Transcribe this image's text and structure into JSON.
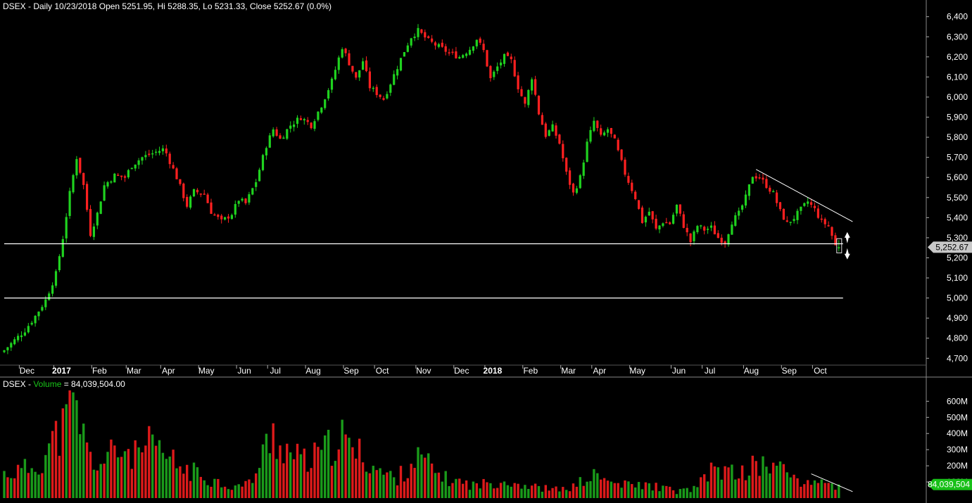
{
  "price_header": {
    "text": "DSEX - Daily 10/23/2018 Open 5251.95, Hi 5288.35, Lo 5231.33, Close 5252.67 (0.0%)"
  },
  "volume_header": {
    "prefix": "DSEX - ",
    "label": "Volume",
    "suffix": " = 84,039,504.00"
  },
  "last_price_tag": "5,252.67",
  "last_volume_tag": "84,039,504",
  "colors": {
    "background": "#000000",
    "up": "#1fd21f",
    "down": "#ff2020",
    "vol_up": "#1a9a1a",
    "vol_down": "#dd1a1a",
    "line": "#ffffff",
    "tag_price_bg": "#c8c8c8",
    "tag_volume_bg": "#18c018"
  },
  "chart_data": [
    {
      "type": "candlestick",
      "title": "DSEX - Daily 10/23/2018",
      "ylim": [
        4680,
        6420
      ],
      "y_ticks": [
        "6,400",
        "6,300",
        "6,200",
        "6,100",
        "6,000",
        "5,900",
        "5,800",
        "5,700",
        "5,600",
        "5,500",
        "5,400",
        "5,300",
        "5,200",
        "5,100",
        "5,000",
        "4,900",
        "4,800",
        "4,700"
      ],
      "y_tick_values": [
        6400,
        6300,
        6200,
        6100,
        6000,
        5900,
        5800,
        5700,
        5600,
        5500,
        5400,
        5300,
        5200,
        5100,
        5000,
        4900,
        4800,
        4700
      ],
      "x_ticks": [
        {
          "label": "Dec",
          "bar": 6,
          "bold": false
        },
        {
          "label": "2017",
          "bar": 16,
          "bold": true
        },
        {
          "label": "Feb",
          "bar": 27,
          "bold": false
        },
        {
          "label": "Mar",
          "bar": 37,
          "bold": false
        },
        {
          "label": "Apr",
          "bar": 47,
          "bold": false
        },
        {
          "label": "May",
          "bar": 58,
          "bold": false
        },
        {
          "label": "Jun",
          "bar": 69,
          "bold": false
        },
        {
          "label": "Jul",
          "bar": 78,
          "bold": false
        },
        {
          "label": "Aug",
          "bar": 89,
          "bold": false
        },
        {
          "label": "Sep",
          "bar": 100,
          "bold": false
        },
        {
          "label": "Oct",
          "bar": 109,
          "bold": false
        },
        {
          "label": "Nov",
          "bar": 121,
          "bold": false
        },
        {
          "label": "Dec",
          "bar": 132,
          "bold": false
        },
        {
          "label": "2018",
          "bar": 141,
          "bold": true
        },
        {
          "label": "Feb",
          "bar": 152,
          "bold": false
        },
        {
          "label": "Mar",
          "bar": 163,
          "bold": false
        },
        {
          "label": "Apr",
          "bar": 172,
          "bold": false
        },
        {
          "label": "May",
          "bar": 183,
          "bold": false
        },
        {
          "label": "Jun",
          "bar": 195,
          "bold": false
        },
        {
          "label": "Jul",
          "bar": 204,
          "bold": false
        },
        {
          "label": "Aug",
          "bar": 216,
          "bold": false
        },
        {
          "label": "Sep",
          "bar": 227,
          "bold": false
        },
        {
          "label": "Oct",
          "bar": 236,
          "bold": false
        }
      ],
      "close_anchors": [
        [
          0,
          4740
        ],
        [
          3,
          4790
        ],
        [
          6,
          4840
        ],
        [
          9,
          4910
        ],
        [
          12,
          4990
        ],
        [
          15,
          5120
        ],
        [
          17,
          5300
        ],
        [
          19,
          5520
        ],
        [
          21,
          5700
        ],
        [
          23,
          5560
        ],
        [
          25,
          5320
        ],
        [
          27,
          5420
        ],
        [
          29,
          5560
        ],
        [
          32,
          5610
        ],
        [
          35,
          5600
        ],
        [
          37,
          5660
        ],
        [
          40,
          5700
        ],
        [
          43,
          5720
        ],
        [
          46,
          5740
        ],
        [
          47,
          5720
        ],
        [
          50,
          5600
        ],
        [
          53,
          5460
        ],
        [
          55,
          5530
        ],
        [
          58,
          5520
        ],
        [
          60,
          5430
        ],
        [
          63,
          5380
        ],
        [
          66,
          5420
        ],
        [
          68,
          5490
        ],
        [
          70,
          5470
        ],
        [
          73,
          5580
        ],
        [
          76,
          5760
        ],
        [
          78,
          5840
        ],
        [
          80,
          5790
        ],
        [
          83,
          5860
        ],
        [
          86,
          5900
        ],
        [
          89,
          5860
        ],
        [
          92,
          5960
        ],
        [
          95,
          6080
        ],
        [
          98,
          6250
        ],
        [
          100,
          6170
        ],
        [
          102,
          6090
        ],
        [
          104,
          6180
        ],
        [
          106,
          6050
        ],
        [
          108,
          6020
        ],
        [
          110,
          5990
        ],
        [
          113,
          6110
        ],
        [
          116,
          6230
        ],
        [
          118,
          6300
        ],
        [
          120,
          6330
        ],
        [
          123,
          6280
        ],
        [
          126,
          6250
        ],
        [
          129,
          6220
        ],
        [
          132,
          6200
        ],
        [
          135,
          6240
        ],
        [
          137,
          6290
        ],
        [
          139,
          6230
        ],
        [
          141,
          6090
        ],
        [
          143,
          6150
        ],
        [
          145,
          6200
        ],
        [
          147,
          6180
        ],
        [
          149,
          6050
        ],
        [
          151,
          5960
        ],
        [
          153,
          6100
        ],
        [
          155,
          5920
        ],
        [
          157,
          5810
        ],
        [
          159,
          5850
        ],
        [
          161,
          5770
        ],
        [
          163,
          5620
        ],
        [
          165,
          5520
        ],
        [
          167,
          5600
        ],
        [
          169,
          5770
        ],
        [
          171,
          5880
        ],
        [
          173,
          5800
        ],
        [
          175,
          5840
        ],
        [
          177,
          5780
        ],
        [
          180,
          5620
        ],
        [
          183,
          5500
        ],
        [
          185,
          5380
        ],
        [
          187,
          5430
        ],
        [
          189,
          5340
        ],
        [
          191,
          5380
        ],
        [
          193,
          5370
        ],
        [
          195,
          5460
        ],
        [
          197,
          5360
        ],
        [
          199,
          5280
        ],
        [
          201,
          5360
        ],
        [
          203,
          5340
        ],
        [
          205,
          5350
        ],
        [
          207,
          5300
        ],
        [
          209,
          5280
        ],
        [
          211,
          5380
        ],
        [
          213,
          5420
        ],
        [
          215,
          5500
        ],
        [
          217,
          5610
        ],
        [
          219,
          5600
        ],
        [
          221,
          5560
        ],
        [
          223,
          5520
        ],
        [
          225,
          5430
        ],
        [
          227,
          5370
        ],
        [
          229,
          5400
        ],
        [
          231,
          5440
        ],
        [
          233,
          5480
        ],
        [
          235,
          5440
        ],
        [
          237,
          5380
        ],
        [
          239,
          5360
        ],
        [
          241,
          5260
        ],
        [
          242,
          5252.67
        ]
      ],
      "last": {
        "open": 5251.95,
        "high": 5288.35,
        "low": 5231.33,
        "close": 5252.67
      },
      "horizontal_lines": [
        5270,
        5000
      ],
      "trendline": [
        [
          218,
          5640
        ],
        [
          246,
          5380
        ]
      ]
    },
    {
      "type": "bar",
      "title": "DSEX - Volume = 84,039,504.00",
      "ylim": [
        0,
        680
      ],
      "y_ticks": [
        "600M",
        "500M",
        "400M",
        "300M",
        "200M",
        "100M"
      ],
      "y_tick_values": [
        600,
        500,
        400,
        300,
        200,
        100
      ],
      "unit": "M",
      "volume_anchors": [
        [
          0,
          150
        ],
        [
          5,
          170
        ],
        [
          10,
          210
        ],
        [
          14,
          350
        ],
        [
          17,
          430
        ],
        [
          19,
          520
        ],
        [
          21,
          560
        ],
        [
          23,
          380
        ],
        [
          25,
          240
        ],
        [
          28,
          210
        ],
        [
          31,
          270
        ],
        [
          35,
          300
        ],
        [
          38,
          260
        ],
        [
          42,
          320
        ],
        [
          45,
          280
        ],
        [
          48,
          240
        ],
        [
          51,
          190
        ],
        [
          55,
          160
        ],
        [
          58,
          130
        ],
        [
          62,
          100
        ],
        [
          66,
          70
        ],
        [
          70,
          80
        ],
        [
          73,
          150
        ],
        [
          76,
          320
        ],
        [
          78,
          400
        ],
        [
          80,
          330
        ],
        [
          84,
          260
        ],
        [
          88,
          220
        ],
        [
          92,
          280
        ],
        [
          95,
          320
        ],
        [
          97,
          400
        ],
        [
          99,
          330
        ],
        [
          101,
          300
        ],
        [
          104,
          260
        ],
        [
          107,
          200
        ],
        [
          110,
          150
        ],
        [
          114,
          120
        ],
        [
          118,
          220
        ],
        [
          121,
          250
        ],
        [
          124,
          180
        ],
        [
          128,
          120
        ],
        [
          132,
          100
        ],
        [
          136,
          80
        ],
        [
          140,
          90
        ],
        [
          145,
          110
        ],
        [
          149,
          90
        ],
        [
          153,
          70
        ],
        [
          157,
          60
        ],
        [
          161,
          50
        ],
        [
          165,
          70
        ],
        [
          169,
          120
        ],
        [
          172,
          140
        ],
        [
          175,
          100
        ],
        [
          180,
          80
        ],
        [
          185,
          80
        ],
        [
          190,
          70
        ],
        [
          195,
          40
        ],
        [
          200,
          60
        ],
        [
          203,
          110
        ],
        [
          206,
          200
        ],
        [
          209,
          160
        ],
        [
          212,
          150
        ],
        [
          215,
          170
        ],
        [
          218,
          200
        ],
        [
          221,
          210
        ],
        [
          224,
          190
        ],
        [
          227,
          160
        ],
        [
          230,
          120
        ],
        [
          233,
          80
        ],
        [
          236,
          120
        ],
        [
          238,
          110
        ],
        [
          240,
          70
        ],
        [
          242,
          84
        ]
      ],
      "trendline": [
        [
          234,
          150
        ],
        [
          246,
          40
        ]
      ]
    }
  ]
}
